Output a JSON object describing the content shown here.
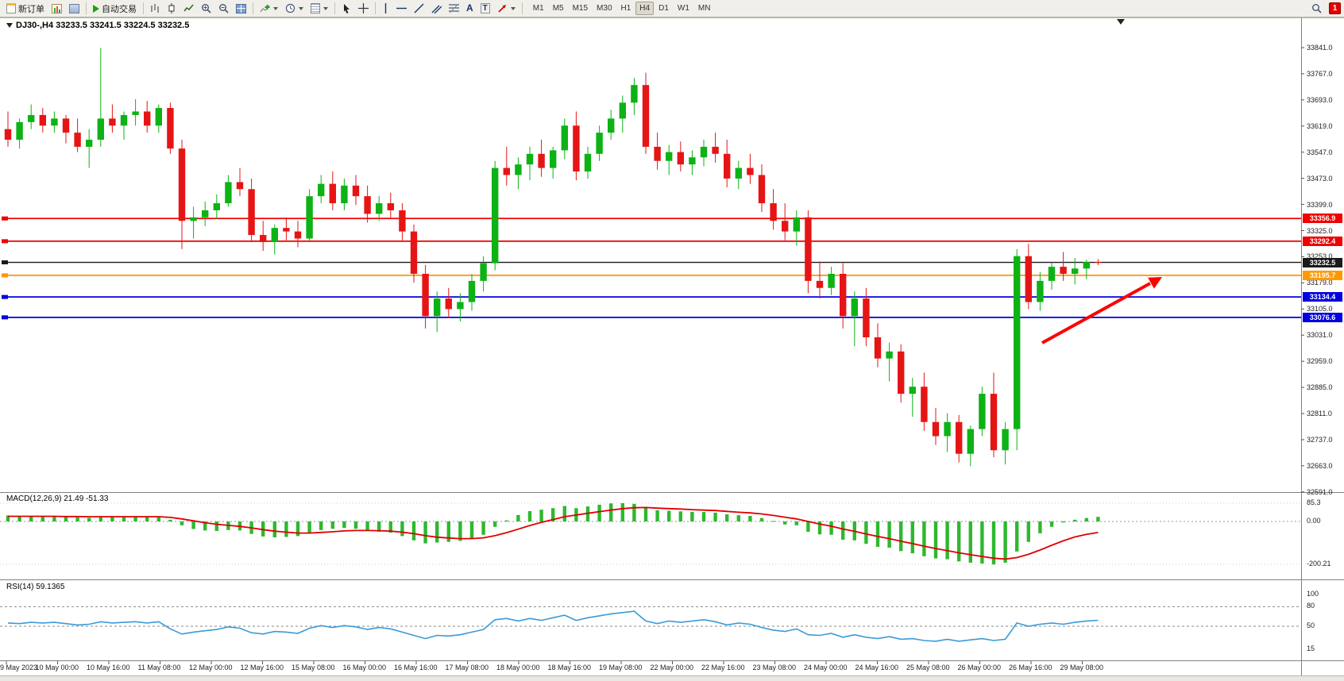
{
  "toolbar": {
    "new_order": "新订单",
    "auto_trading": "自动交易",
    "text_tool": "A",
    "label_tool": "T",
    "timeframes": [
      "M1",
      "M5",
      "M15",
      "M30",
      "H1",
      "H4",
      "D1",
      "W1",
      "MN"
    ],
    "active_timeframe": "H4",
    "notification_count": "1"
  },
  "chart": {
    "header": "DJ30-,H4  33233.5 33241.5 33224.5 33232.5",
    "price_axis_labels": [
      "33841.0",
      "33767.0",
      "33693.0",
      "33619.0",
      "33547.0",
      "33473.0",
      "33399.0",
      "33325.0",
      "33253.0",
      "33179.0",
      "33105.0",
      "33031.0",
      "32959.0",
      "32885.0",
      "32811.0",
      "32737.0",
      "32663.0",
      "32591.0"
    ],
    "levels": [
      {
        "price": 33356.9,
        "label": "33356.9",
        "color": "#f00000"
      },
      {
        "price": 33292.4,
        "label": "33292.4",
        "color": "#f00000"
      },
      {
        "price": 33232.5,
        "label": "33232.5",
        "color": "#1a1a1a"
      },
      {
        "price": 33195.7,
        "label": "33195.7",
        "color": "#ff9900"
      },
      {
        "price": 33134.4,
        "label": "33134.4",
        "color": "#0000e0"
      },
      {
        "price": 33076.6,
        "label": "33076.6",
        "color": "#0000e0"
      }
    ],
    "time_axis": [
      "9 May 2023",
      "10 May 00:00",
      "10 May 16:00",
      "11 May 08:00",
      "12 May 00:00",
      "12 May 16:00",
      "15 May 08:00",
      "16 May 00:00",
      "16 May 16:00",
      "17 May 08:00",
      "18 May 00:00",
      "18 May 16:00",
      "19 May 08:00",
      "22 May 00:00",
      "22 May 16:00",
      "23 May 08:00",
      "24 May 00:00",
      "24 May 16:00",
      "25 May 08:00",
      "26 May 00:00",
      "26 May 16:00",
      "29 May 08:00"
    ]
  },
  "macd": {
    "label": "MACD(12,26,9) 21.49 -51.33",
    "scale": [
      "85.3",
      "0.00",
      "-200.21"
    ]
  },
  "rsi": {
    "label": "RSI(14) 59.1365",
    "scale": [
      "100",
      "80",
      "50",
      "15"
    ]
  },
  "chart_data": {
    "type": "candlestick",
    "symbol": "DJ30-",
    "timeframe": "H4",
    "ohlc_format": [
      "open",
      "high",
      "low",
      "close"
    ],
    "price_axis_range": [
      32591,
      33841
    ],
    "ohlc": [
      [
        33610,
        33660,
        33560,
        33580
      ],
      [
        33580,
        33640,
        33555,
        33630
      ],
      [
        33630,
        33680,
        33610,
        33650
      ],
      [
        33650,
        33670,
        33600,
        33620
      ],
      [
        33620,
        33660,
        33600,
        33640
      ],
      [
        33640,
        33650,
        33570,
        33600
      ],
      [
        33600,
        33640,
        33545,
        33560
      ],
      [
        33560,
        33610,
        33500,
        33580
      ],
      [
        33580,
        33840,
        33560,
        33640
      ],
      [
        33640,
        33680,
        33600,
        33620
      ],
      [
        33620,
        33660,
        33580,
        33650
      ],
      [
        33650,
        33695,
        33620,
        33660
      ],
      [
        33660,
        33690,
        33600,
        33620
      ],
      [
        33620,
        33680,
        33600,
        33670
      ],
      [
        33670,
        33685,
        33540,
        33555
      ],
      [
        33555,
        33580,
        33270,
        33350
      ],
      [
        33350,
        33390,
        33300,
        33360
      ],
      [
        33360,
        33405,
        33335,
        33380
      ],
      [
        33380,
        33425,
        33355,
        33400
      ],
      [
        33400,
        33480,
        33390,
        33460
      ],
      [
        33460,
        33500,
        33420,
        33440
      ],
      [
        33440,
        33470,
        33290,
        33310
      ],
      [
        33310,
        33350,
        33265,
        33290
      ],
      [
        33290,
        33340,
        33255,
        33330
      ],
      [
        33330,
        33360,
        33295,
        33320
      ],
      [
        33320,
        33350,
        33275,
        33300
      ],
      [
        33300,
        33440,
        33290,
        33420
      ],
      [
        33420,
        33480,
        33400,
        33455
      ],
      [
        33455,
        33490,
        33380,
        33400
      ],
      [
        33400,
        33470,
        33380,
        33450
      ],
      [
        33450,
        33480,
        33395,
        33420
      ],
      [
        33420,
        33450,
        33345,
        33370
      ],
      [
        33370,
        33420,
        33350,
        33400
      ],
      [
        33400,
        33430,
        33355,
        33380
      ],
      [
        33380,
        33400,
        33295,
        33320
      ],
      [
        33320,
        33340,
        33175,
        33200
      ],
      [
        33200,
        33225,
        33045,
        33080
      ],
      [
        33080,
        33150,
        33035,
        33130
      ],
      [
        33130,
        33160,
        33075,
        33100
      ],
      [
        33100,
        33145,
        33065,
        33120
      ],
      [
        33120,
        33200,
        33095,
        33180
      ],
      [
        33180,
        33250,
        33150,
        33230
      ],
      [
        33230,
        33520,
        33210,
        33500
      ],
      [
        33500,
        33560,
        33450,
        33480
      ],
      [
        33480,
        33530,
        33440,
        33510
      ],
      [
        33510,
        33560,
        33465,
        33540
      ],
      [
        33540,
        33580,
        33475,
        33500
      ],
      [
        33500,
        33560,
        33470,
        33550
      ],
      [
        33550,
        33640,
        33525,
        33620
      ],
      [
        33620,
        33660,
        33465,
        33490
      ],
      [
        33490,
        33560,
        33470,
        33540
      ],
      [
        33540,
        33620,
        33520,
        33600
      ],
      [
        33600,
        33665,
        33580,
        33640
      ],
      [
        33640,
        33705,
        33600,
        33685
      ],
      [
        33685,
        33755,
        33650,
        33735
      ],
      [
        33735,
        33770,
        33540,
        33560
      ],
      [
        33560,
        33600,
        33495,
        33520
      ],
      [
        33520,
        33565,
        33480,
        33545
      ],
      [
        33545,
        33575,
        33490,
        33510
      ],
      [
        33510,
        33550,
        33480,
        33530
      ],
      [
        33530,
        33580,
        33505,
        33560
      ],
      [
        33560,
        33600,
        33515,
        33540
      ],
      [
        33540,
        33580,
        33445,
        33470
      ],
      [
        33470,
        33520,
        33440,
        33500
      ],
      [
        33500,
        33540,
        33455,
        33480
      ],
      [
        33480,
        33510,
        33375,
        33400
      ],
      [
        33400,
        33440,
        33325,
        33350
      ],
      [
        33350,
        33400,
        33295,
        33320
      ],
      [
        33320,
        33380,
        33280,
        33360
      ],
      [
        33360,
        33380,
        33145,
        33180
      ],
      [
        33180,
        33235,
        33130,
        33160
      ],
      [
        33160,
        33220,
        33140,
        33200
      ],
      [
        33200,
        33230,
        33045,
        33080
      ],
      [
        33080,
        33150,
        32995,
        33130
      ],
      [
        33130,
        33160,
        32995,
        33020
      ],
      [
        33020,
        33060,
        32935,
        32960
      ],
      [
        32960,
        33005,
        32895,
        32980
      ],
      [
        32980,
        33000,
        32835,
        32860
      ],
      [
        32860,
        32905,
        32795,
        32880
      ],
      [
        32880,
        32920,
        32755,
        32780
      ],
      [
        32780,
        32820,
        32715,
        32740
      ],
      [
        32740,
        32805,
        32695,
        32780
      ],
      [
        32780,
        32800,
        32665,
        32690
      ],
      [
        32690,
        32770,
        32655,
        32760
      ],
      [
        32760,
        32880,
        32740,
        32860
      ],
      [
        32860,
        32920,
        32680,
        32700
      ],
      [
        32700,
        32780,
        32660,
        32760
      ],
      [
        32760,
        33270,
        32700,
        33250
      ],
      [
        33250,
        33285,
        33100,
        33120
      ],
      [
        33120,
        33205,
        33095,
        33180
      ],
      [
        33180,
        33232,
        33155,
        33220
      ],
      [
        33220,
        33262,
        33180,
        33200
      ],
      [
        33200,
        33245,
        33170,
        33215
      ],
      [
        33215,
        33240,
        33185,
        33233.5
      ],
      [
        33233.5,
        33241.5,
        33224.5,
        33232.5
      ]
    ],
    "indicators": {
      "macd": {
        "params": "12,26,9",
        "current_histogram": 21.49,
        "current_signal": -51.33,
        "range": [
          -200.21,
          85.3
        ],
        "histogram": [
          28,
          26,
          25,
          24,
          23,
          21,
          19,
          17,
          20,
          21,
          23,
          24,
          22,
          21,
          8,
          -18,
          -35,
          -42,
          -44,
          -40,
          -42,
          -58,
          -70,
          -74,
          -72,
          -68,
          -52,
          -40,
          -34,
          -30,
          -34,
          -44,
          -48,
          -52,
          -68,
          -88,
          -102,
          -98,
          -95,
          -90,
          -80,
          -62,
          -25,
          5,
          30,
          48,
          55,
          62,
          72,
          62,
          70,
          78,
          84,
          85.3,
          82,
          66,
          52,
          50,
          47,
          45,
          44,
          41,
          33,
          29,
          26,
          16,
          2,
          -14,
          -18,
          -48,
          -60,
          -62,
          -85,
          -88,
          -104,
          -118,
          -122,
          -138,
          -148,
          -162,
          -172,
          -176,
          -186,
          -192,
          -196,
          -200.21,
          -192,
          -140,
          -95,
          -55,
          -25,
          -5,
          8,
          16,
          21.49
        ],
        "signal": [
          24,
          24,
          24,
          24,
          24,
          23,
          23,
          22,
          22,
          22,
          22,
          22,
          22,
          22,
          19,
          12,
          3,
          -6,
          -13,
          -18,
          -23,
          -30,
          -38,
          -45,
          -50,
          -54,
          -54,
          -51,
          -48,
          -44,
          -42,
          -42,
          -43,
          -45,
          -50,
          -57,
          -66,
          -73,
          -77,
          -80,
          -80,
          -76,
          -66,
          -52,
          -36,
          -19,
          -4,
          9,
          22,
          30,
          38,
          46,
          53,
          60,
          64,
          65,
          62,
          60,
          58,
          55,
          53,
          51,
          47,
          43,
          40,
          35,
          28,
          20,
          12,
          0,
          -12,
          -22,
          -35,
          -46,
          -58,
          -70,
          -80,
          -92,
          -103,
          -115,
          -126,
          -136,
          -146,
          -155,
          -163,
          -171,
          -175,
          -168,
          -153,
          -133,
          -111,
          -90,
          -72,
          -60,
          -51.33
        ]
      },
      "rsi": {
        "params": "14",
        "current": 59.1365,
        "levels": [
          80,
          50
        ],
        "range": [
          0,
          100
        ],
        "values": [
          55,
          54,
          56,
          55,
          56,
          54,
          52,
          53,
          57,
          55,
          56,
          57,
          55,
          57,
          46,
          38,
          41,
          43,
          45,
          49,
          47,
          40,
          38,
          42,
          41,
          39,
          47,
          51,
          48,
          51,
          49,
          45,
          48,
          46,
          41,
          36,
          31,
          36,
          35,
          37,
          41,
          45,
          60,
          62,
          58,
          62,
          59,
          63,
          67,
          59,
          63,
          66,
          69,
          71,
          73,
          58,
          54,
          58,
          56,
          58,
          60,
          57,
          52,
          55,
          53,
          48,
          44,
          42,
          46,
          37,
          36,
          39,
          33,
          37,
          33,
          31,
          34,
          30,
          31,
          28,
          27,
          30,
          27,
          29,
          31,
          28,
          30,
          55,
          50,
          53,
          55,
          53,
          56,
          58,
          59.14
        ]
      }
    },
    "colors": {
      "up": "#0db215",
      "down": "#e61515",
      "macd_bar": "#2eb82e",
      "macd_signal": "#e00000",
      "rsi": "#3a9ad9",
      "arrow": "#ff0000"
    },
    "annotations": [
      {
        "type": "arrow",
        "color": "#ff0000",
        "direction": "up-right",
        "note": "points toward orange level from below"
      }
    ]
  }
}
